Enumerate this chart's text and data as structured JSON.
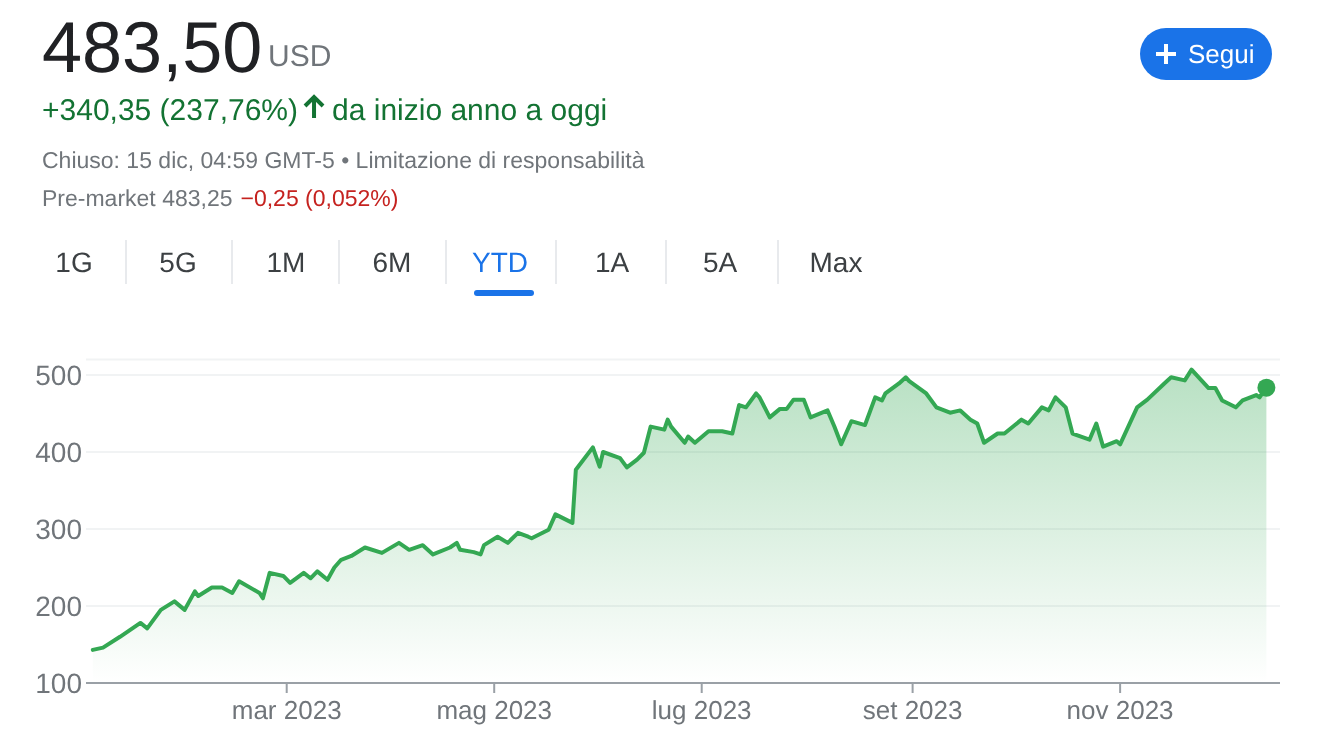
{
  "chart_data": {
    "type": "area",
    "title": "483,50",
    "subtitle": "USD",
    "annotations": [
      "+340,35 (237,76%)",
      "da inizio anno a oggi",
      "Chiuso: 15 dic, 04:59 GMT-5 • Limitazione di responsabilità",
      "Pre-market 483,25",
      "−0,25 (0,052%)",
      "Segui",
      "1G",
      "5G",
      "1M",
      "6M",
      "YTD",
      "1A",
      "5A",
      "Max"
    ],
    "xlim": [
      "2023-01-01",
      "2023-12-18"
    ],
    "xticks": [
      {
        "value": "2023-03-01",
        "label": "mar 2023"
      },
      {
        "value": "2023-05-01",
        "label": "mag 2023"
      },
      {
        "value": "2023-07-01",
        "label": "lug 2023"
      },
      {
        "value": "2023-09-01",
        "label": "set 2023"
      },
      {
        "value": "2023-11-01",
        "label": "nov 2023"
      }
    ],
    "ylim": [
      100,
      520
    ],
    "yticks": [
      100,
      200,
      300,
      400,
      500
    ],
    "grid": "y",
    "series": [
      {
        "color": "#34a853",
        "x": [
          "2023-01-03",
          "2023-01-06",
          "2023-01-11",
          "2023-01-17",
          "2023-01-19",
          "2023-01-23",
          "2023-01-27",
          "2023-01-30",
          "2023-02-02",
          "2023-02-03",
          "2023-02-07",
          "2023-02-10",
          "2023-02-13",
          "2023-02-15",
          "2023-02-21",
          "2023-02-22",
          "2023-02-24",
          "2023-02-28",
          "2023-03-02",
          "2023-03-06",
          "2023-03-08",
          "2023-03-10",
          "2023-03-13",
          "2023-03-15",
          "2023-03-17",
          "2023-03-20",
          "2023-03-24",
          "2023-03-29",
          "2023-04-03",
          "2023-04-06",
          "2023-04-10",
          "2023-04-13",
          "2023-04-18",
          "2023-04-20",
          "2023-04-21",
          "2023-04-25",
          "2023-04-27",
          "2023-04-28",
          "2023-05-02",
          "2023-05-05",
          "2023-05-08",
          "2023-05-11",
          "2023-05-12",
          "2023-05-17",
          "2023-05-19",
          "2023-05-24",
          "2023-05-25",
          "2023-05-30",
          "2023-06-01",
          "2023-06-02",
          "2023-06-07",
          "2023-06-09",
          "2023-06-12",
          "2023-06-14",
          "2023-06-16",
          "2023-06-20",
          "2023-06-21",
          "2023-06-22",
          "2023-06-26",
          "2023-06-27",
          "2023-06-29",
          "2023-07-03",
          "2023-07-07",
          "2023-07-10",
          "2023-07-12",
          "2023-07-14",
          "2023-07-17",
          "2023-07-18",
          "2023-07-21",
          "2023-07-24",
          "2023-07-26",
          "2023-07-28",
          "2023-07-31",
          "2023-08-02",
          "2023-08-07",
          "2023-08-09",
          "2023-08-11",
          "2023-08-14",
          "2023-08-18",
          "2023-08-21",
          "2023-08-23",
          "2023-08-24",
          "2023-08-28",
          "2023-08-30",
          "2023-08-31",
          "2023-09-05",
          "2023-09-08",
          "2023-09-12",
          "2023-09-15",
          "2023-09-18",
          "2023-09-20",
          "2023-09-22",
          "2023-09-26",
          "2023-09-28",
          "2023-10-03",
          "2023-10-05",
          "2023-10-09",
          "2023-10-11",
          "2023-10-13",
          "2023-10-16",
          "2023-10-18",
          "2023-10-23",
          "2023-10-25",
          "2023-10-27",
          "2023-10-31",
          "2023-11-01",
          "2023-11-06",
          "2023-11-09",
          "2023-11-14",
          "2023-11-16",
          "2023-11-20",
          "2023-11-22",
          "2023-11-27",
          "2023-11-29",
          "2023-12-01",
          "2023-12-05",
          "2023-12-07",
          "2023-12-11",
          "2023-12-12",
          "2023-12-14"
        ],
        "values": [
          143,
          146,
          160,
          178,
          171,
          195,
          206,
          195,
          219,
          213,
          224,
          224,
          217,
          232,
          217,
          210,
          243,
          239,
          230,
          243,
          236,
          245,
          234,
          250,
          260,
          265,
          276,
          269,
          282,
          273,
          279,
          267,
          276,
          282,
          273,
          270,
          267,
          279,
          290,
          282,
          295,
          290,
          288,
          299,
          319,
          308,
          377,
          406,
          381,
          400,
          392,
          380,
          390,
          399,
          433,
          429,
          442,
          433,
          412,
          420,
          412,
          427,
          427,
          424,
          461,
          458,
          476,
          471,
          445,
          456,
          456,
          468,
          468,
          445,
          454,
          433,
          410,
          440,
          435,
          471,
          467,
          476,
          489,
          497,
          492,
          476,
          458,
          451,
          454,
          442,
          437,
          412,
          424,
          424,
          442,
          437,
          458,
          454,
          471,
          458,
          424,
          416,
          437,
          407,
          414,
          410,
          458,
          468,
          489,
          497,
          493,
          507,
          483,
          483,
          467,
          458,
          467,
          474,
          471,
          483.5
        ]
      },
      {
        "type": "scatter",
        "color": "#34a853",
        "marker": "circle",
        "x": [
          "2023-12-14"
        ],
        "values": [
          483.5
        ]
      }
    ]
  }
}
